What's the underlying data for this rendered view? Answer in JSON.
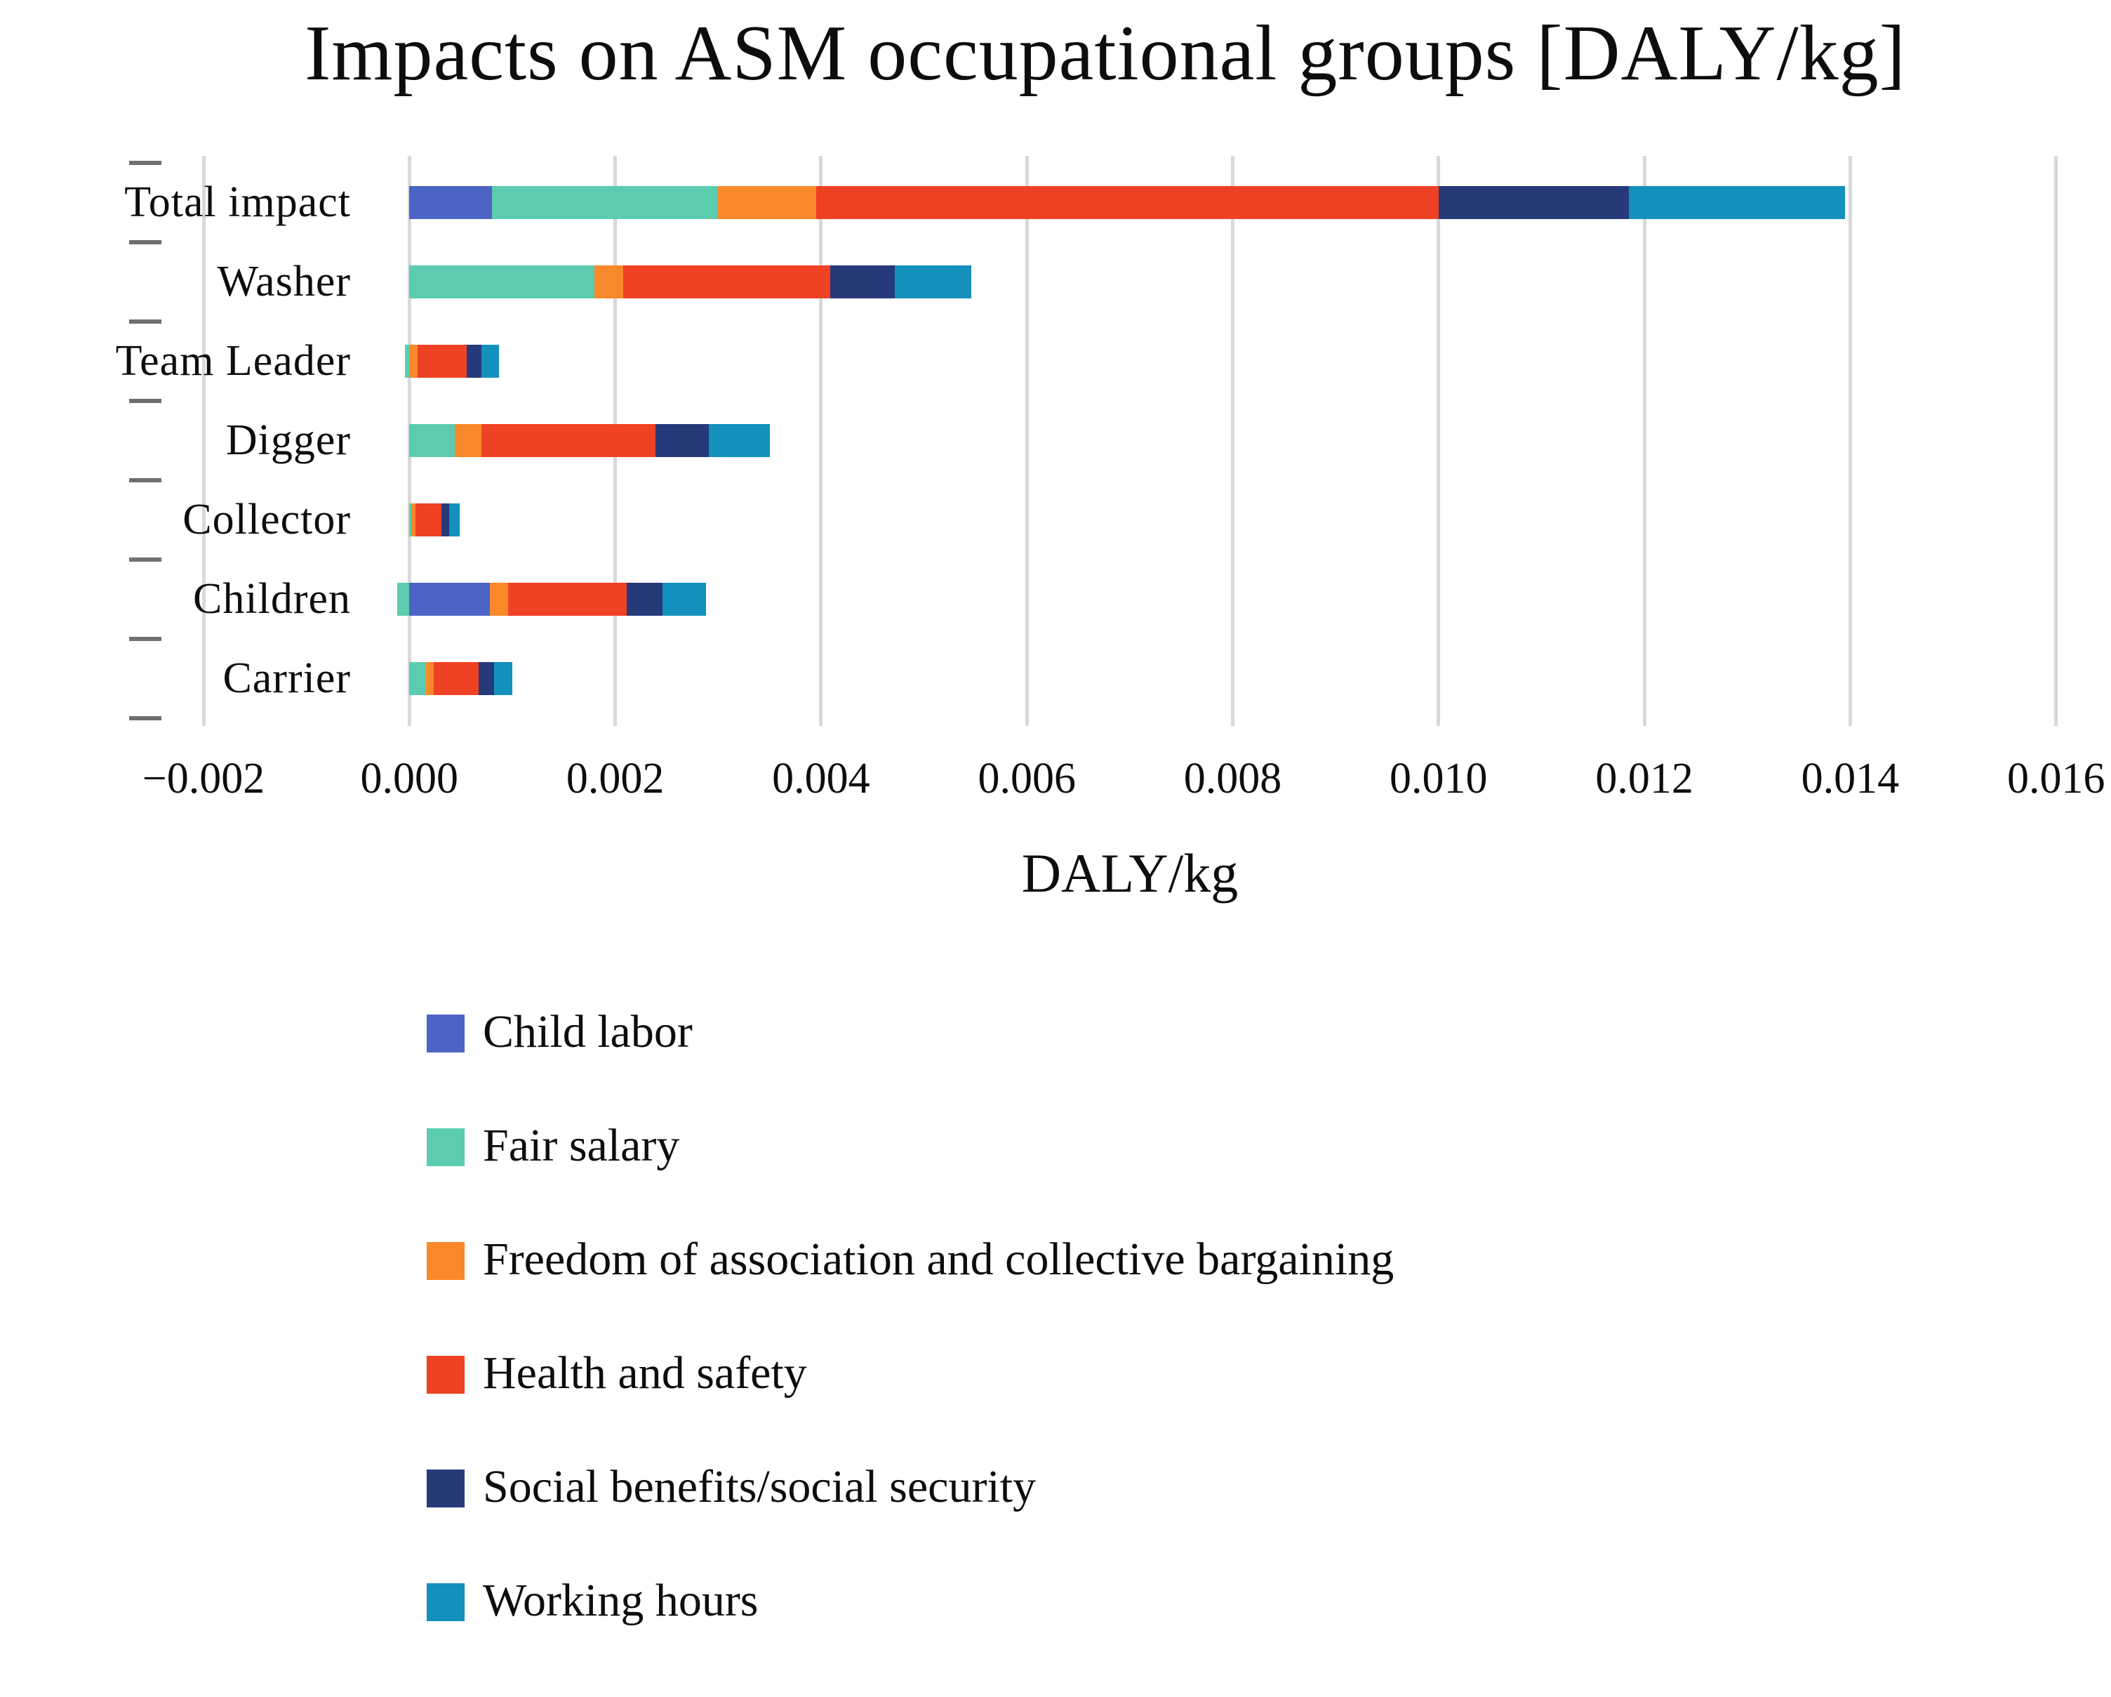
{
  "chart_data": {
    "type": "bar",
    "orientation": "horizontal-stacked",
    "title": "Impacts on ASM occupational groups [DALY/kg]",
    "xlabel": "DALY/kg",
    "xlim": [
      -0.002,
      0.016
    ],
    "grid": "vertical",
    "legend_position": "bottom-left-vertical",
    "categories": [
      "Total impact",
      "Washer",
      "Team Leader",
      "Digger",
      "Collector",
      "Children",
      "Carrier"
    ],
    "series": [
      {
        "name": "Child labor",
        "color": "#4b64c5",
        "values": [
          0.0008,
          0,
          0,
          0,
          0,
          0.00078,
          0
        ]
      },
      {
        "name": "Fair salary",
        "color": "#5bccb0",
        "values": [
          0.0022,
          0.0018,
          -4e-05,
          0.00044,
          2e-05,
          -0.00012,
          0.00016
        ]
      },
      {
        "name": "Freedom of association and collective bargaining",
        "color": "#f9882b",
        "values": [
          0.00095,
          0.00028,
          8e-05,
          0.00026,
          4e-05,
          0.00018,
          8e-05
        ]
      },
      {
        "name": "Health and safety",
        "color": "#ef4123",
        "values": [
          0.00605,
          0.00201,
          0.00048,
          0.00169,
          0.00025,
          0.00115,
          0.00043
        ]
      },
      {
        "name": "Social benefits/social security",
        "color": "#263a7a",
        "values": [
          0.00185,
          0.00063,
          0.00014,
          0.00052,
          8e-05,
          0.00035,
          0.00015
        ]
      },
      {
        "name": "Working hours",
        "color": "#1490bd",
        "values": [
          0.0021,
          0.00074,
          0.00017,
          0.00059,
          0.0001,
          0.00042,
          0.00018
        ]
      }
    ],
    "x_ticks": [
      {
        "value": -0.002,
        "label": "−0.002"
      },
      {
        "value": 0.0,
        "label": "0.000"
      },
      {
        "value": 0.002,
        "label": "0.002"
      },
      {
        "value": 0.004,
        "label": "0.004"
      },
      {
        "value": 0.006,
        "label": "0.006"
      },
      {
        "value": 0.008,
        "label": "0.008"
      },
      {
        "value": 0.01,
        "label": "0.010"
      },
      {
        "value": 0.012,
        "label": "0.012"
      },
      {
        "value": 0.014,
        "label": "0.014"
      },
      {
        "value": 0.016,
        "label": "0.016"
      }
    ]
  },
  "colors": {
    "gridline": "#d9d9d9",
    "category_tick": "#6f6f6f",
    "text": "#0d0d0d",
    "background": "#ffffff"
  }
}
